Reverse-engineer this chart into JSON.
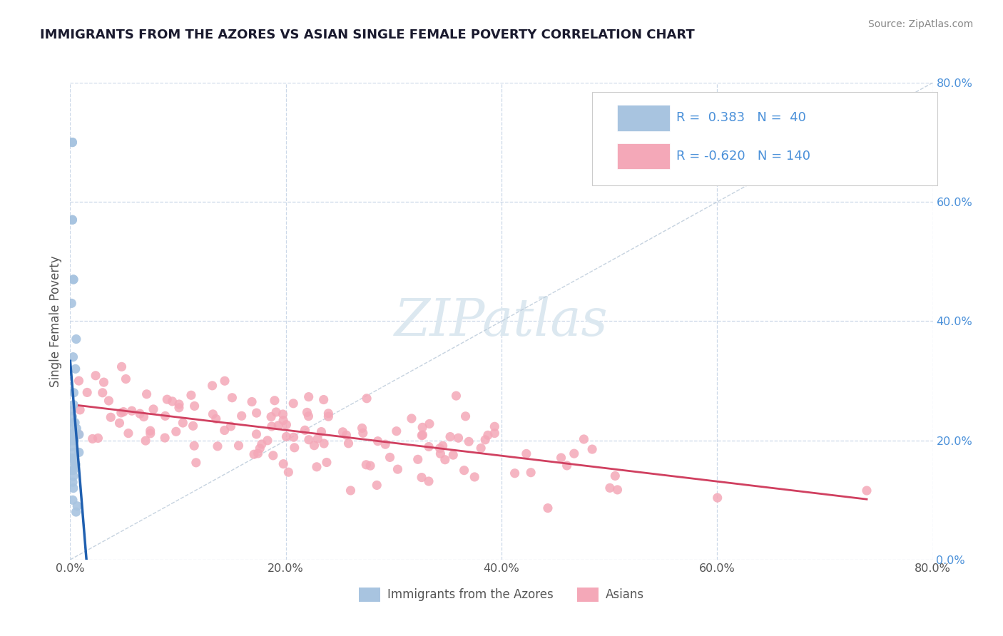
{
  "title": "IMMIGRANTS FROM THE AZORES VS ASIAN SINGLE FEMALE POVERTY CORRELATION CHART",
  "source": "Source: ZipAtlas.com",
  "ylabel": "Single Female Poverty",
  "right_yticklabels": [
    "0.0%",
    "20.0%",
    "40.0%",
    "60.0%",
    "80.0%"
  ],
  "right_ytick_vals": [
    0.0,
    0.2,
    0.4,
    0.6,
    0.8
  ],
  "xticklabels": [
    "0.0%",
    "20.0%",
    "40.0%",
    "60.0%",
    "80.0%"
  ],
  "xtick_vals": [
    0.0,
    0.2,
    0.4,
    0.6,
    0.8
  ],
  "xlim": [
    0.0,
    0.8
  ],
  "ylim": [
    0.0,
    0.8
  ],
  "legend_labels": [
    "Immigrants from the Azores",
    "Asians"
  ],
  "blue_scatter_color": "#a8c4e0",
  "pink_scatter_color": "#f4a8b8",
  "blue_line_color": "#2060b0",
  "pink_line_color": "#d04060",
  "diag_line_color": "#b8c8d8",
  "background_color": "#ffffff",
  "grid_color": "#ccd8e8",
  "watermark_color": "#dce8f0",
  "title_color": "#1a1a2e",
  "source_color": "#888888",
  "tick_color": "#4a90d9",
  "label_color": "#555555"
}
